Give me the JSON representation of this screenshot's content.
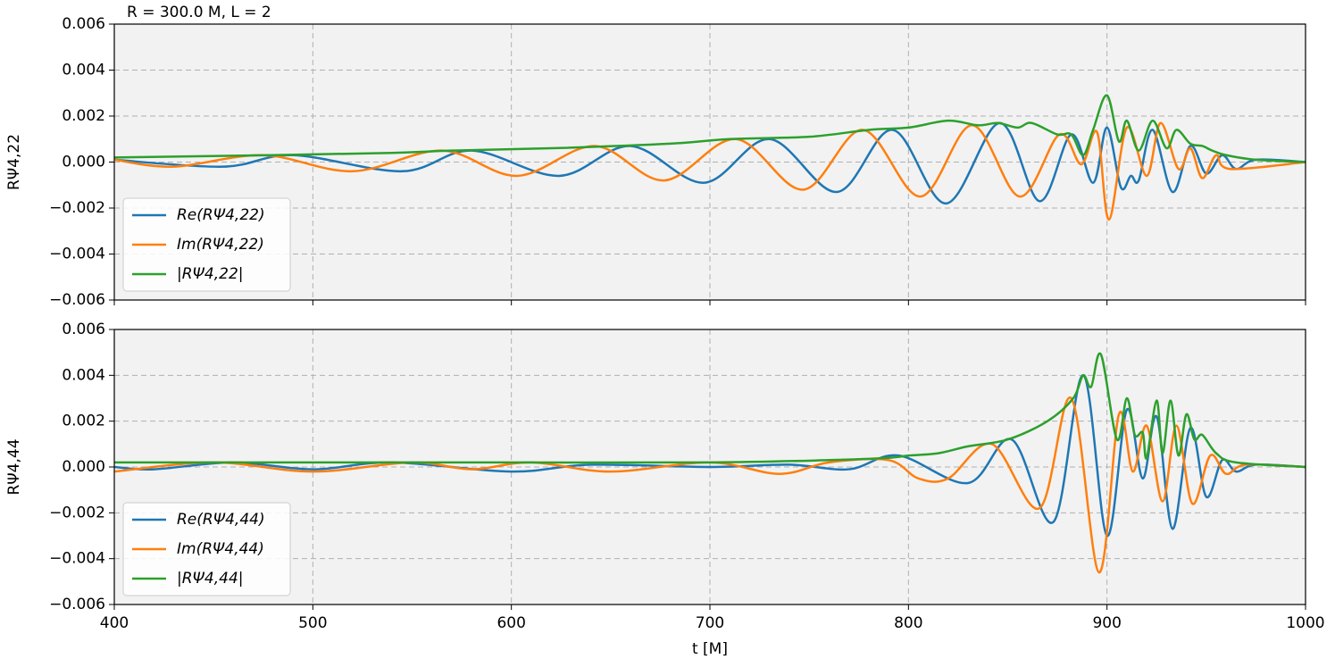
{
  "chart_data": [
    {
      "type": "line",
      "title": "R = 300.0 M, L = 2",
      "ylabel": "RΨ4,22",
      "xlim": [
        400,
        1000
      ],
      "xticks": [
        400,
        500,
        600,
        700,
        800,
        900,
        1000
      ],
      "ylim": [
        -0.006,
        0.006
      ],
      "yticks": [
        {
          "value": -0.006,
          "label": "−0.006"
        },
        {
          "value": -0.004,
          "label": "−0.004"
        },
        {
          "value": -0.002,
          "label": "−0.002"
        },
        {
          "value": 0,
          "label": "0.000"
        },
        0.002,
        0.004,
        0.006
      ],
      "grid": true,
      "legend": "lower left",
      "series": [
        {
          "name": "Re(RΨ4,22)",
          "color": "#1f77b4",
          "x": [
            400,
            455,
            490,
            545,
            580,
            624,
            660,
            697,
            730,
            764,
            792,
            819,
            846,
            866,
            882,
            893,
            900,
            907,
            912,
            916,
            923,
            933,
            942,
            950,
            958,
            965,
            975,
            1000
          ],
          "values": [
            0.0001,
            -0.0002,
            0.0003,
            -0.0004,
            0.0005,
            -0.0006,
            0.0007,
            -0.0009,
            0.001,
            -0.0013,
            0.0014,
            -0.0018,
            0.0017,
            -0.0017,
            0.0012,
            -0.0009,
            0.0015,
            -0.0011,
            -0.0006,
            -0.0008,
            0.0014,
            -0.0013,
            0.0007,
            -0.0005,
            0.0003,
            -0.0003,
            0.0001,
            0
          ]
        },
        {
          "name": "Im(RΨ4,22)",
          "color": "#ff7f0e",
          "x": [
            400,
            430,
            475,
            520,
            565,
            603,
            642,
            677,
            713,
            747,
            777,
            806,
            832,
            856,
            876,
            887,
            895,
            901,
            910,
            920,
            927,
            936,
            942,
            948,
            955,
            962,
            1000
          ],
          "values": [
            0.0001,
            -0.0002,
            0.0003,
            -0.0004,
            0.0005,
            -0.0006,
            0.0007,
            -0.0008,
            0.001,
            -0.0012,
            0.0014,
            -0.0015,
            0.0016,
            -0.0015,
            0.0012,
            -0.0001,
            0.0013,
            -0.0025,
            0.0015,
            -0.0006,
            0.0017,
            -0.0003,
            0.0006,
            -0.0007,
            0.0003,
            -0.0003,
            0
          ]
        },
        {
          "name": "|RΨ4,22|",
          "color": "#2ca02c",
          "x": [
            400,
            480,
            540,
            570,
            620,
            680,
            710,
            750,
            780,
            800,
            820,
            835,
            845,
            855,
            862,
            875,
            882,
            888,
            893,
            900,
            906,
            910,
            916,
            923,
            930,
            935,
            942,
            948,
            953,
            960,
            975,
            1000
          ],
          "values": [
            0.0002,
            0.0003,
            0.0004,
            0.0005,
            0.0006,
            0.0008,
            0.001,
            0.0011,
            0.0014,
            0.0015,
            0.0018,
            0.0016,
            0.0017,
            0.0015,
            0.0017,
            0.0012,
            0.0012,
            0.0003,
            0.0014,
            0.0029,
            0.0009,
            0.0018,
            0.0005,
            0.0018,
            0.0006,
            0.0014,
            0.0008,
            0.0007,
            0.0005,
            0.0003,
            0.0001,
            0
          ]
        }
      ]
    },
    {
      "type": "line",
      "xlabel": "t [M]",
      "ylabel": "RΨ4,44",
      "xlim": [
        400,
        1000
      ],
      "xticks": [
        400,
        500,
        600,
        700,
        800,
        900,
        1000
      ],
      "ylim": [
        -0.006,
        0.006
      ],
      "yticks": [
        {
          "value": -0.006,
          "label": "−0.006"
        },
        {
          "value": -0.004,
          "label": "−0.004"
        },
        {
          "value": -0.002,
          "label": "−0.002"
        },
        {
          "value": 0,
          "label": "0.000"
        },
        0.002,
        0.004,
        0.006
      ],
      "grid": true,
      "legend": "lower left",
      "series": [
        {
          "name": "Re(RΨ4,44)",
          "color": "#1f77b4",
          "x": [
            400,
            420,
            460,
            500,
            540,
            600,
            640,
            700,
            740,
            770,
            795,
            830,
            852,
            873,
            888,
            900,
            910,
            918,
            925,
            933,
            942,
            950,
            958,
            965,
            975,
            1000
          ],
          "values": [
            0,
            -0.0001,
            0.0002,
            -0.0001,
            0.0002,
            -0.0002,
            0.0001,
            0,
            0.0001,
            -0.0001,
            0.0005,
            -0.0007,
            0.0012,
            -0.0024,
            0.004,
            -0.003,
            0.0025,
            -0.0005,
            0.0022,
            -0.0027,
            0.0017,
            -0.0013,
            0.0003,
            -0.0002,
            0.0001,
            0
          ]
        },
        {
          "name": "Im(RΨ4,44)",
          "color": "#ff7f0e",
          "x": [
            400,
            450,
            500,
            550,
            580,
            610,
            650,
            700,
            735,
            760,
            790,
            805,
            820,
            842,
            866,
            882,
            896,
            906,
            913,
            920,
            928,
            935,
            943,
            952,
            960,
            970,
            1000
          ],
          "values": [
            -0.0002,
            0.0002,
            -0.0002,
            0.0002,
            -0.0001,
            0.0002,
            -0.0002,
            0.0002,
            -0.0003,
            0.0002,
            0.0003,
            -0.0005,
            -0.0005,
            0.001,
            -0.0018,
            0.003,
            -0.0046,
            0.0023,
            -0.0002,
            0.0018,
            -0.0015,
            0.0018,
            -0.0016,
            0.0005,
            -0.0003,
            0.0001,
            0
          ]
        },
        {
          "name": "|RΨ4,44|",
          "color": "#2ca02c",
          "x": [
            400,
            500,
            600,
            700,
            760,
            790,
            800,
            815,
            830,
            850,
            870,
            883,
            888,
            892,
            897,
            905,
            910,
            914,
            918,
            920,
            925,
            928,
            932,
            936,
            940,
            944,
            948,
            955,
            965,
            1000
          ],
          "values": [
            0.0002,
            0.0002,
            0.0002,
            0.0002,
            0.0003,
            0.0004,
            0.0005,
            0.0006,
            0.0009,
            0.0012,
            0.002,
            0.003,
            0.004,
            0.0035,
            0.0049,
            0.0012,
            0.003,
            0.0014,
            0.0015,
            0.0004,
            0.0029,
            0.0006,
            0.0029,
            0.0005,
            0.0023,
            0.0012,
            0.0014,
            0.0006,
            0.0002,
            0
          ]
        }
      ]
    }
  ]
}
